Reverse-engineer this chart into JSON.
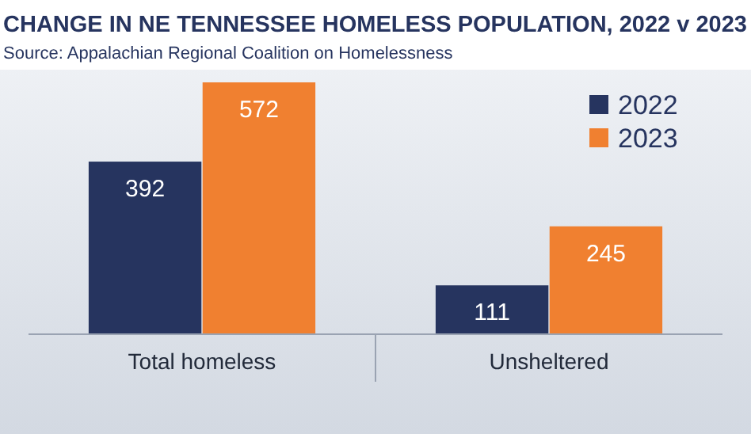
{
  "chart_data": {
    "type": "bar",
    "title": "CHANGE IN NE TENNESSEE HOMELESS POPULATION, 2022 v 2023",
    "subtitle": "Source: Appalachian Regional Coalition on Homelessness",
    "categories": [
      "Total homeless",
      "Unsheltered"
    ],
    "series": [
      {
        "name": "2022",
        "color": "#26345f",
        "values": [
          392,
          111
        ]
      },
      {
        "name": "2023",
        "color": "#f08030",
        "values": [
          572,
          245
        ]
      }
    ],
    "data_labels": true,
    "legend": "top right",
    "grid": false
  }
}
